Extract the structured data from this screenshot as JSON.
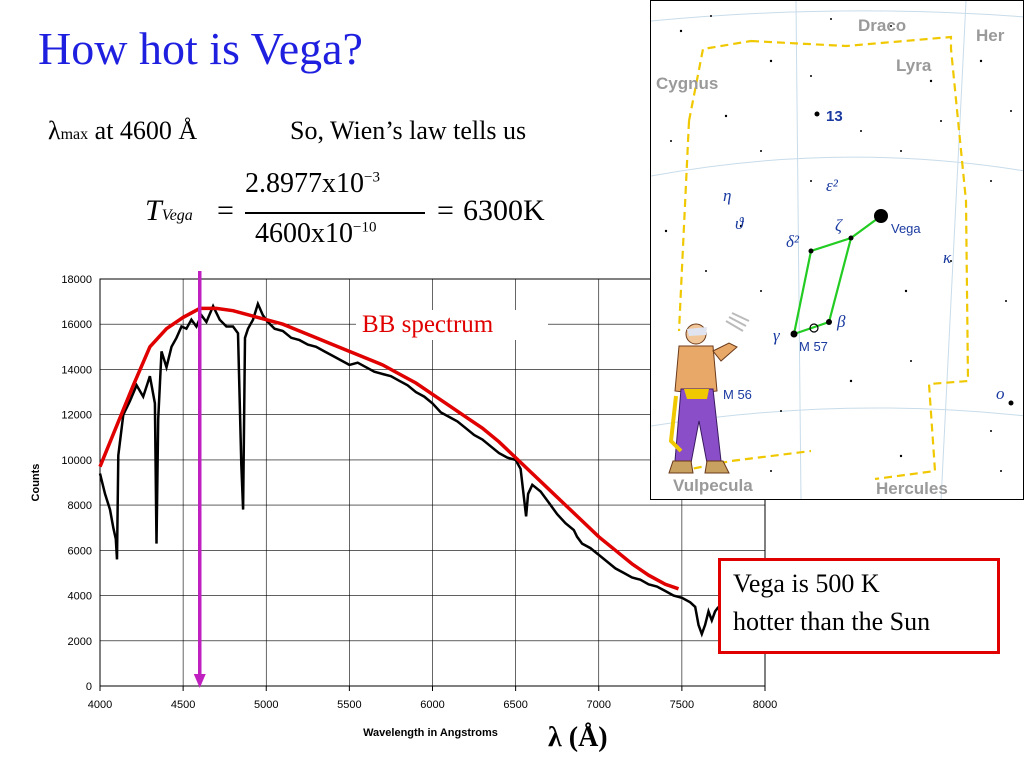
{
  "slide": {
    "title": "How hot is Vega?",
    "lambda_symbol": "λ",
    "lambda_sub": "max",
    "lambda_text": " at 4600 Å",
    "wien_text": "So, Wien’s law tells us",
    "equation": {
      "T": "T",
      "T_sub": "Vega",
      "eq1": "=",
      "numerator": "2.8977x10",
      "num_exp": "−3",
      "denominator": "4600x10",
      "den_exp": "−10",
      "eq2": "=",
      "result": "6300K"
    },
    "callout_line1": "Vega is 500 K",
    "callout_line2": "hotter than the Sun",
    "lambda_axis_label": "λ (Å)"
  },
  "chart_data": {
    "type": "line",
    "xlabel": "Wavelength in Angstroms",
    "ylabel": "Counts",
    "xlim": [
      4000,
      8000
    ],
    "ylim": [
      0,
      18000
    ],
    "x_ticks": [
      4000,
      4500,
      5000,
      5500,
      6000,
      6500,
      7000,
      7500,
      8000
    ],
    "y_ticks": [
      0,
      2000,
      4000,
      6000,
      8000,
      10000,
      12000,
      14000,
      16000,
      18000
    ],
    "grid": true,
    "series": [
      {
        "color": "#000000",
        "x": [
          4000,
          4030,
          4060,
          4080,
          4095,
          4102,
          4110,
          4140,
          4180,
          4220,
          4260,
          4300,
          4330,
          4340,
          4350,
          4370,
          4400,
          4430,
          4460,
          4490,
          4520,
          4550,
          4580,
          4610,
          4640,
          4680,
          4720,
          4760,
          4800,
          4830,
          4850,
          4861,
          4872,
          4890,
          4920,
          4950,
          4980,
          5010,
          5050,
          5100,
          5150,
          5200,
          5250,
          5300,
          5350,
          5400,
          5450,
          5500,
          5550,
          5600,
          5650,
          5700,
          5750,
          5800,
          5850,
          5900,
          5950,
          6000,
          6050,
          6100,
          6150,
          6200,
          6250,
          6300,
          6350,
          6400,
          6450,
          6500,
          6530,
          6555,
          6563,
          6575,
          6600,
          6650,
          6700,
          6750,
          6800,
          6850,
          6870,
          6900,
          6950,
          7000,
          7050,
          7100,
          7150,
          7200,
          7250,
          7300,
          7350,
          7400,
          7450,
          7500,
          7550,
          7580,
          7600,
          7620,
          7640,
          7660,
          7680,
          7700,
          7720
        ],
        "values": [
          9400,
          8500,
          7800,
          7000,
          6500,
          5600,
          10200,
          12000,
          12600,
          13300,
          12800,
          13700,
          12500,
          6300,
          11800,
          14800,
          14100,
          15000,
          15400,
          15900,
          15800,
          16200,
          15900,
          16400,
          16100,
          16800,
          16200,
          15900,
          15900,
          15600,
          9800,
          7800,
          15400,
          15800,
          16200,
          16900,
          16400,
          16100,
          15800,
          15700,
          15400,
          15300,
          15100,
          15000,
          14800,
          14600,
          14400,
          14200,
          14300,
          14100,
          13900,
          13800,
          13700,
          13500,
          13300,
          13000,
          12800,
          12500,
          12100,
          11900,
          11700,
          11400,
          11100,
          10900,
          10600,
          10300,
          10100,
          10000,
          9600,
          8000,
          7500,
          8500,
          8900,
          8600,
          8100,
          7600,
          7200,
          6900,
          6600,
          6300,
          6100,
          5800,
          5500,
          5200,
          5000,
          4800,
          4700,
          4500,
          4400,
          4200,
          4000,
          3900,
          3700,
          3500,
          2700,
          2300,
          2700,
          3300,
          2900,
          3300,
          3500
        ]
      },
      {
        "name": "BB spectrum",
        "color": "#e00000",
        "x": [
          4000,
          4100,
          4200,
          4300,
          4400,
          4500,
          4600,
          4700,
          4800,
          4900,
          5000,
          5100,
          5200,
          5300,
          5400,
          5500,
          5600,
          5700,
          5800,
          5900,
          6000,
          6100,
          6200,
          6300,
          6400,
          6500,
          6600,
          6700,
          6800,
          6900,
          7000,
          7100,
          7200,
          7300,
          7400,
          7480
        ],
        "values": [
          9700,
          11500,
          13300,
          15000,
          15800,
          16300,
          16700,
          16700,
          16600,
          16400,
          16200,
          16000,
          15700,
          15400,
          15100,
          14800,
          14500,
          14200,
          13800,
          13400,
          12900,
          12400,
          11900,
          11400,
          10800,
          10100,
          9400,
          8700,
          8000,
          7300,
          6600,
          6000,
          5400,
          4900,
          4500,
          4300
        ]
      }
    ],
    "annotations": [
      {
        "type": "vertical-arrow",
        "x": 4600,
        "color": "#c020c0"
      }
    ]
  },
  "constellation": {
    "labels": [
      "Draco",
      "Her",
      "Lyra",
      "Cygnus",
      "13",
      "ε²",
      "η",
      "ϑ",
      "ζ",
      "Vega",
      "δ²",
      "κ",
      "γ",
      "β",
      "M 57",
      "M 56",
      "ο",
      "Vulpecula",
      "Hercules"
    ]
  }
}
